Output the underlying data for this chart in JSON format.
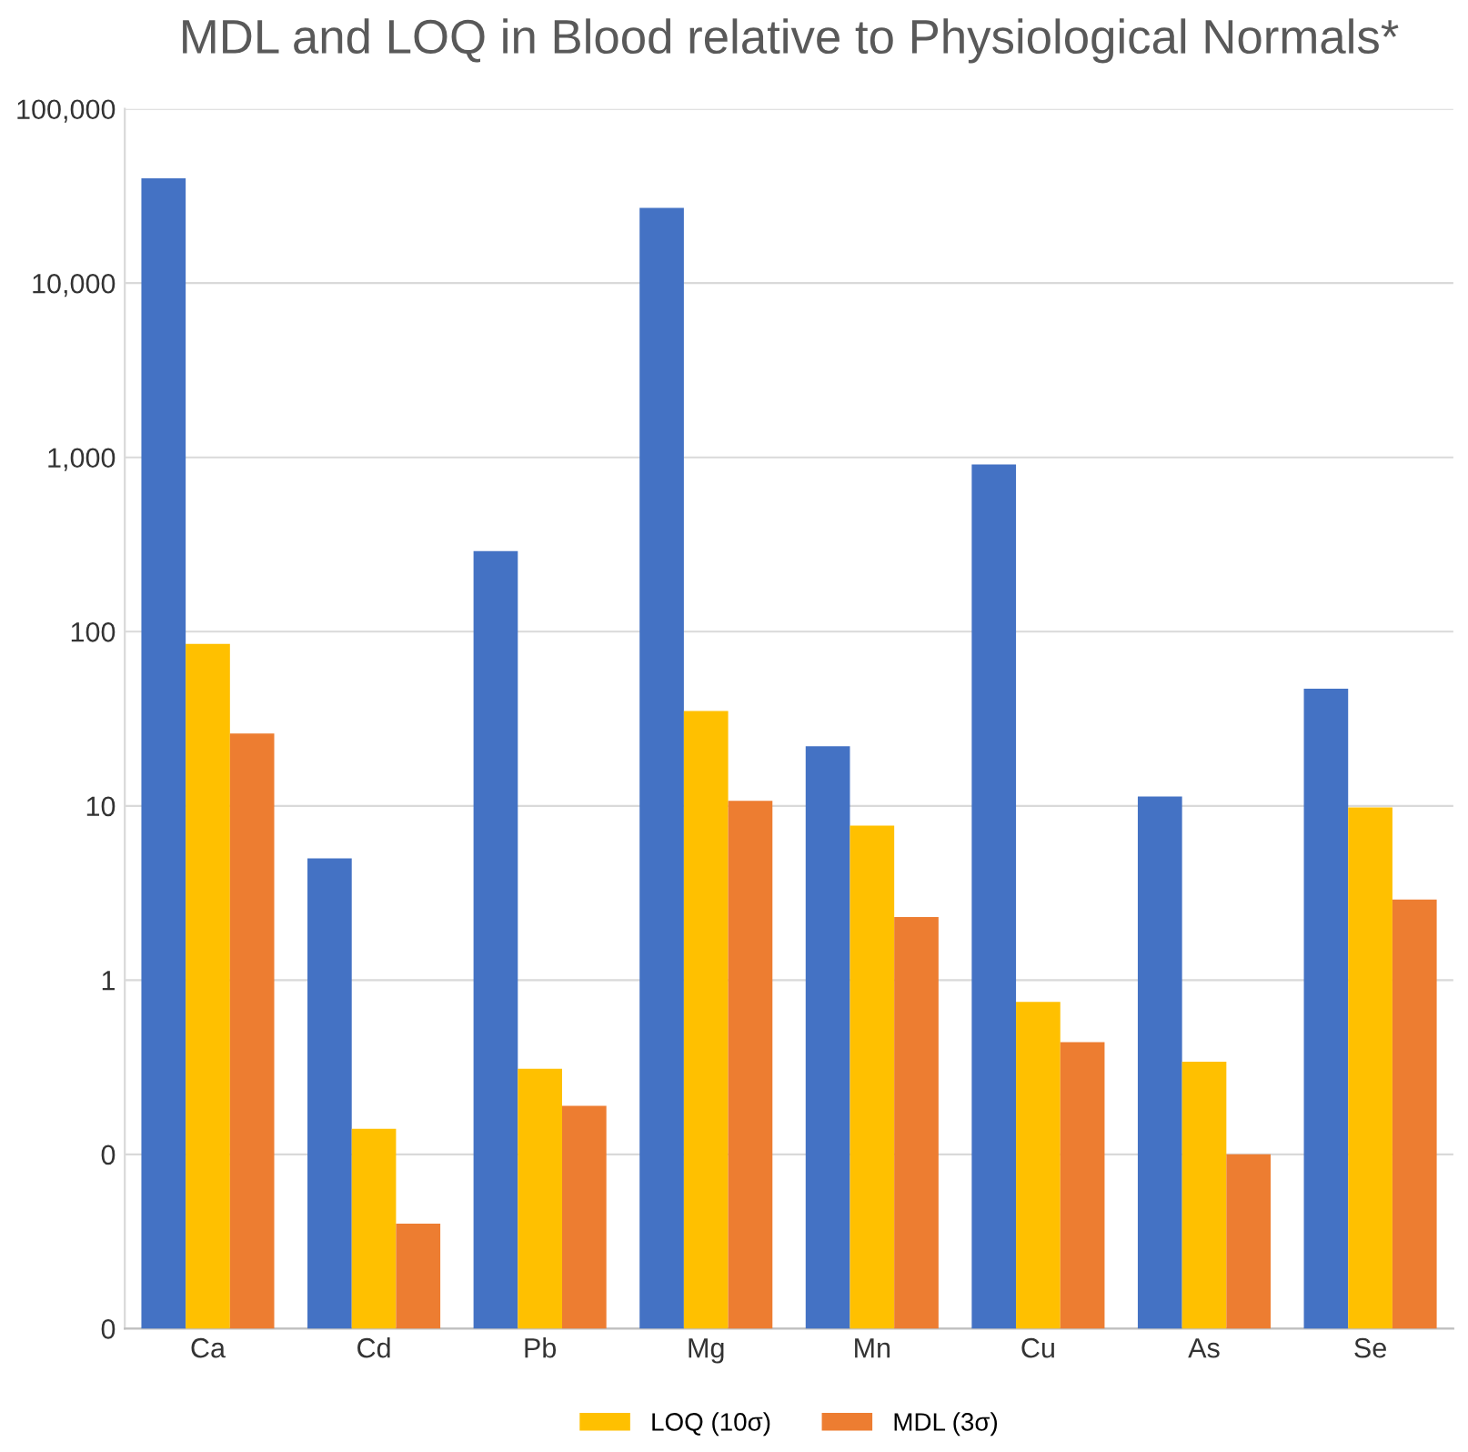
{
  "chart_data": {
    "type": "bar",
    "title": "MDL and LOQ in Blood relative to Physiological Normals*",
    "categories": [
      "Ca",
      "Cd",
      "Pb",
      "Mg",
      "Mn",
      "Cu",
      "As",
      "Se"
    ],
    "series": [
      {
        "color": "#4472c4",
        "values": [
          40000,
          5.0,
          290,
          27000,
          22,
          910,
          11.3,
          47
        ]
      },
      {
        "name": "LOQ (10σ)",
        "color": "#ffc000",
        "values": [
          85,
          0.14,
          0.31,
          35,
          7.7,
          0.75,
          0.34,
          9.8
        ]
      },
      {
        "name": "MDL (3σ)",
        "color": "#ed7d31",
        "values": [
          26,
          0.04,
          0.19,
          10.7,
          2.3,
          0.44,
          0.1,
          2.9
        ]
      }
    ],
    "log": "y",
    "ylim": [
      0.01,
      100000
    ],
    "yticks": [
      {
        "value": 0.01,
        "label": "0"
      },
      {
        "value": 0.1,
        "label": "0"
      },
      1,
      10,
      100,
      {
        "value": 1000,
        "label": "1,000"
      },
      {
        "value": 10000,
        "label": "10,000"
      },
      {
        "value": 100000,
        "label": "100,000"
      }
    ],
    "grid": "y",
    "legend": "bottom"
  }
}
